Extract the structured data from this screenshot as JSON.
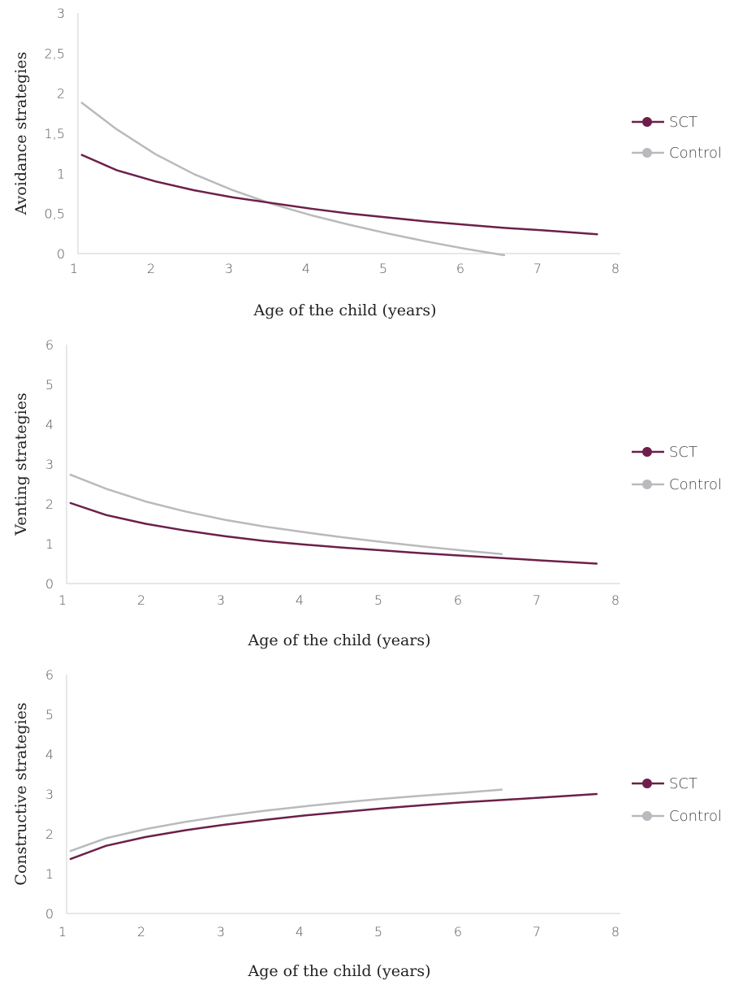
{
  "colors": {
    "SCT": "#6d1f4a",
    "Control": "#b9babd"
  },
  "chart_data": [
    {
      "type": "line",
      "xlabel": "Age of the child (years)",
      "ylabel": "Avoidance strategies",
      "xlim": [
        1,
        8
      ],
      "ylim": [
        0,
        3
      ],
      "xticks": [
        "1",
        "2",
        "3",
        "4",
        "5",
        "6",
        "7",
        "8"
      ],
      "yticks": [
        "0",
        "0,5",
        "1",
        "1,5",
        "2",
        "2,5",
        "3"
      ],
      "yticks_values": [
        0,
        0.5,
        1,
        1.5,
        2,
        2.5,
        3
      ],
      "legend": "right",
      "grid": false,
      "series": [
        {
          "name": "SCT",
          "x": [
            1.05,
            1.5,
            2,
            2.5,
            3,
            3.5,
            4,
            4.5,
            5,
            5.5,
            6,
            6.5,
            7,
            7.7
          ],
          "y": [
            1.23,
            1.04,
            0.9,
            0.79,
            0.7,
            0.63,
            0.56,
            0.5,
            0.45,
            0.4,
            0.36,
            0.32,
            0.29,
            0.24
          ]
        },
        {
          "name": "Control",
          "x": [
            1.05,
            1.5,
            2,
            2.5,
            3,
            3.5,
            4,
            4.5,
            5,
            5.5,
            6,
            6.5
          ],
          "y": [
            1.88,
            1.55,
            1.24,
            0.99,
            0.79,
            0.62,
            0.48,
            0.36,
            0.25,
            0.15,
            0.06,
            -0.02
          ]
        }
      ]
    },
    {
      "type": "line",
      "xlabel": "Age of the child (years)",
      "ylabel": "Venting strategies",
      "xlim": [
        1,
        8
      ],
      "ylim": [
        0,
        6
      ],
      "xticks": [
        "1",
        "2",
        "3",
        "4",
        "5",
        "6",
        "7",
        "8"
      ],
      "yticks": [
        "0",
        "1",
        "2",
        "3",
        "4",
        "5",
        "6"
      ],
      "yticks_values": [
        0,
        1,
        2,
        3,
        4,
        5,
        6
      ],
      "legend": "right",
      "grid": false,
      "series": [
        {
          "name": "SCT",
          "x": [
            1.05,
            1.5,
            2,
            2.5,
            3,
            3.5,
            4,
            4.5,
            5,
            5.5,
            6,
            6.5,
            7,
            7.7
          ],
          "y": [
            2.02,
            1.72,
            1.5,
            1.33,
            1.19,
            1.07,
            0.98,
            0.9,
            0.83,
            0.76,
            0.7,
            0.64,
            0.58,
            0.5
          ]
        },
        {
          "name": "Control",
          "x": [
            1.05,
            1.5,
            2,
            2.5,
            3,
            3.5,
            4,
            4.5,
            5,
            5.5,
            6,
            6.5
          ],
          "y": [
            2.73,
            2.38,
            2.06,
            1.81,
            1.6,
            1.43,
            1.29,
            1.16,
            1.04,
            0.93,
            0.83,
            0.74
          ]
        }
      ]
    },
    {
      "type": "line",
      "xlabel": "Age of the child (years)",
      "ylabel": "Constructive strategies",
      "xlim": [
        1,
        8
      ],
      "ylim": [
        0,
        6
      ],
      "xticks": [
        "1",
        "2",
        "3",
        "4",
        "5",
        "6",
        "7",
        "8"
      ],
      "yticks": [
        "0",
        "1",
        "2",
        "3",
        "4",
        "5",
        "6"
      ],
      "yticks_values": [
        0,
        1,
        2,
        3,
        4,
        5,
        6
      ],
      "legend": "right",
      "grid": false,
      "series": [
        {
          "name": "SCT",
          "x": [
            1.05,
            1.5,
            2,
            2.5,
            3,
            3.5,
            4,
            4.5,
            5,
            5.5,
            6,
            6.5,
            7,
            7.7
          ],
          "y": [
            1.37,
            1.7,
            1.92,
            2.09,
            2.23,
            2.35,
            2.46,
            2.55,
            2.64,
            2.72,
            2.79,
            2.85,
            2.91,
            3.0
          ]
        },
        {
          "name": "Control",
          "x": [
            1.05,
            1.5,
            2,
            2.5,
            3,
            3.5,
            4,
            4.5,
            5,
            5.5,
            6,
            6.5
          ],
          "y": [
            1.57,
            1.89,
            2.12,
            2.3,
            2.45,
            2.58,
            2.69,
            2.79,
            2.88,
            2.96,
            3.03,
            3.11
          ]
        }
      ]
    }
  ]
}
